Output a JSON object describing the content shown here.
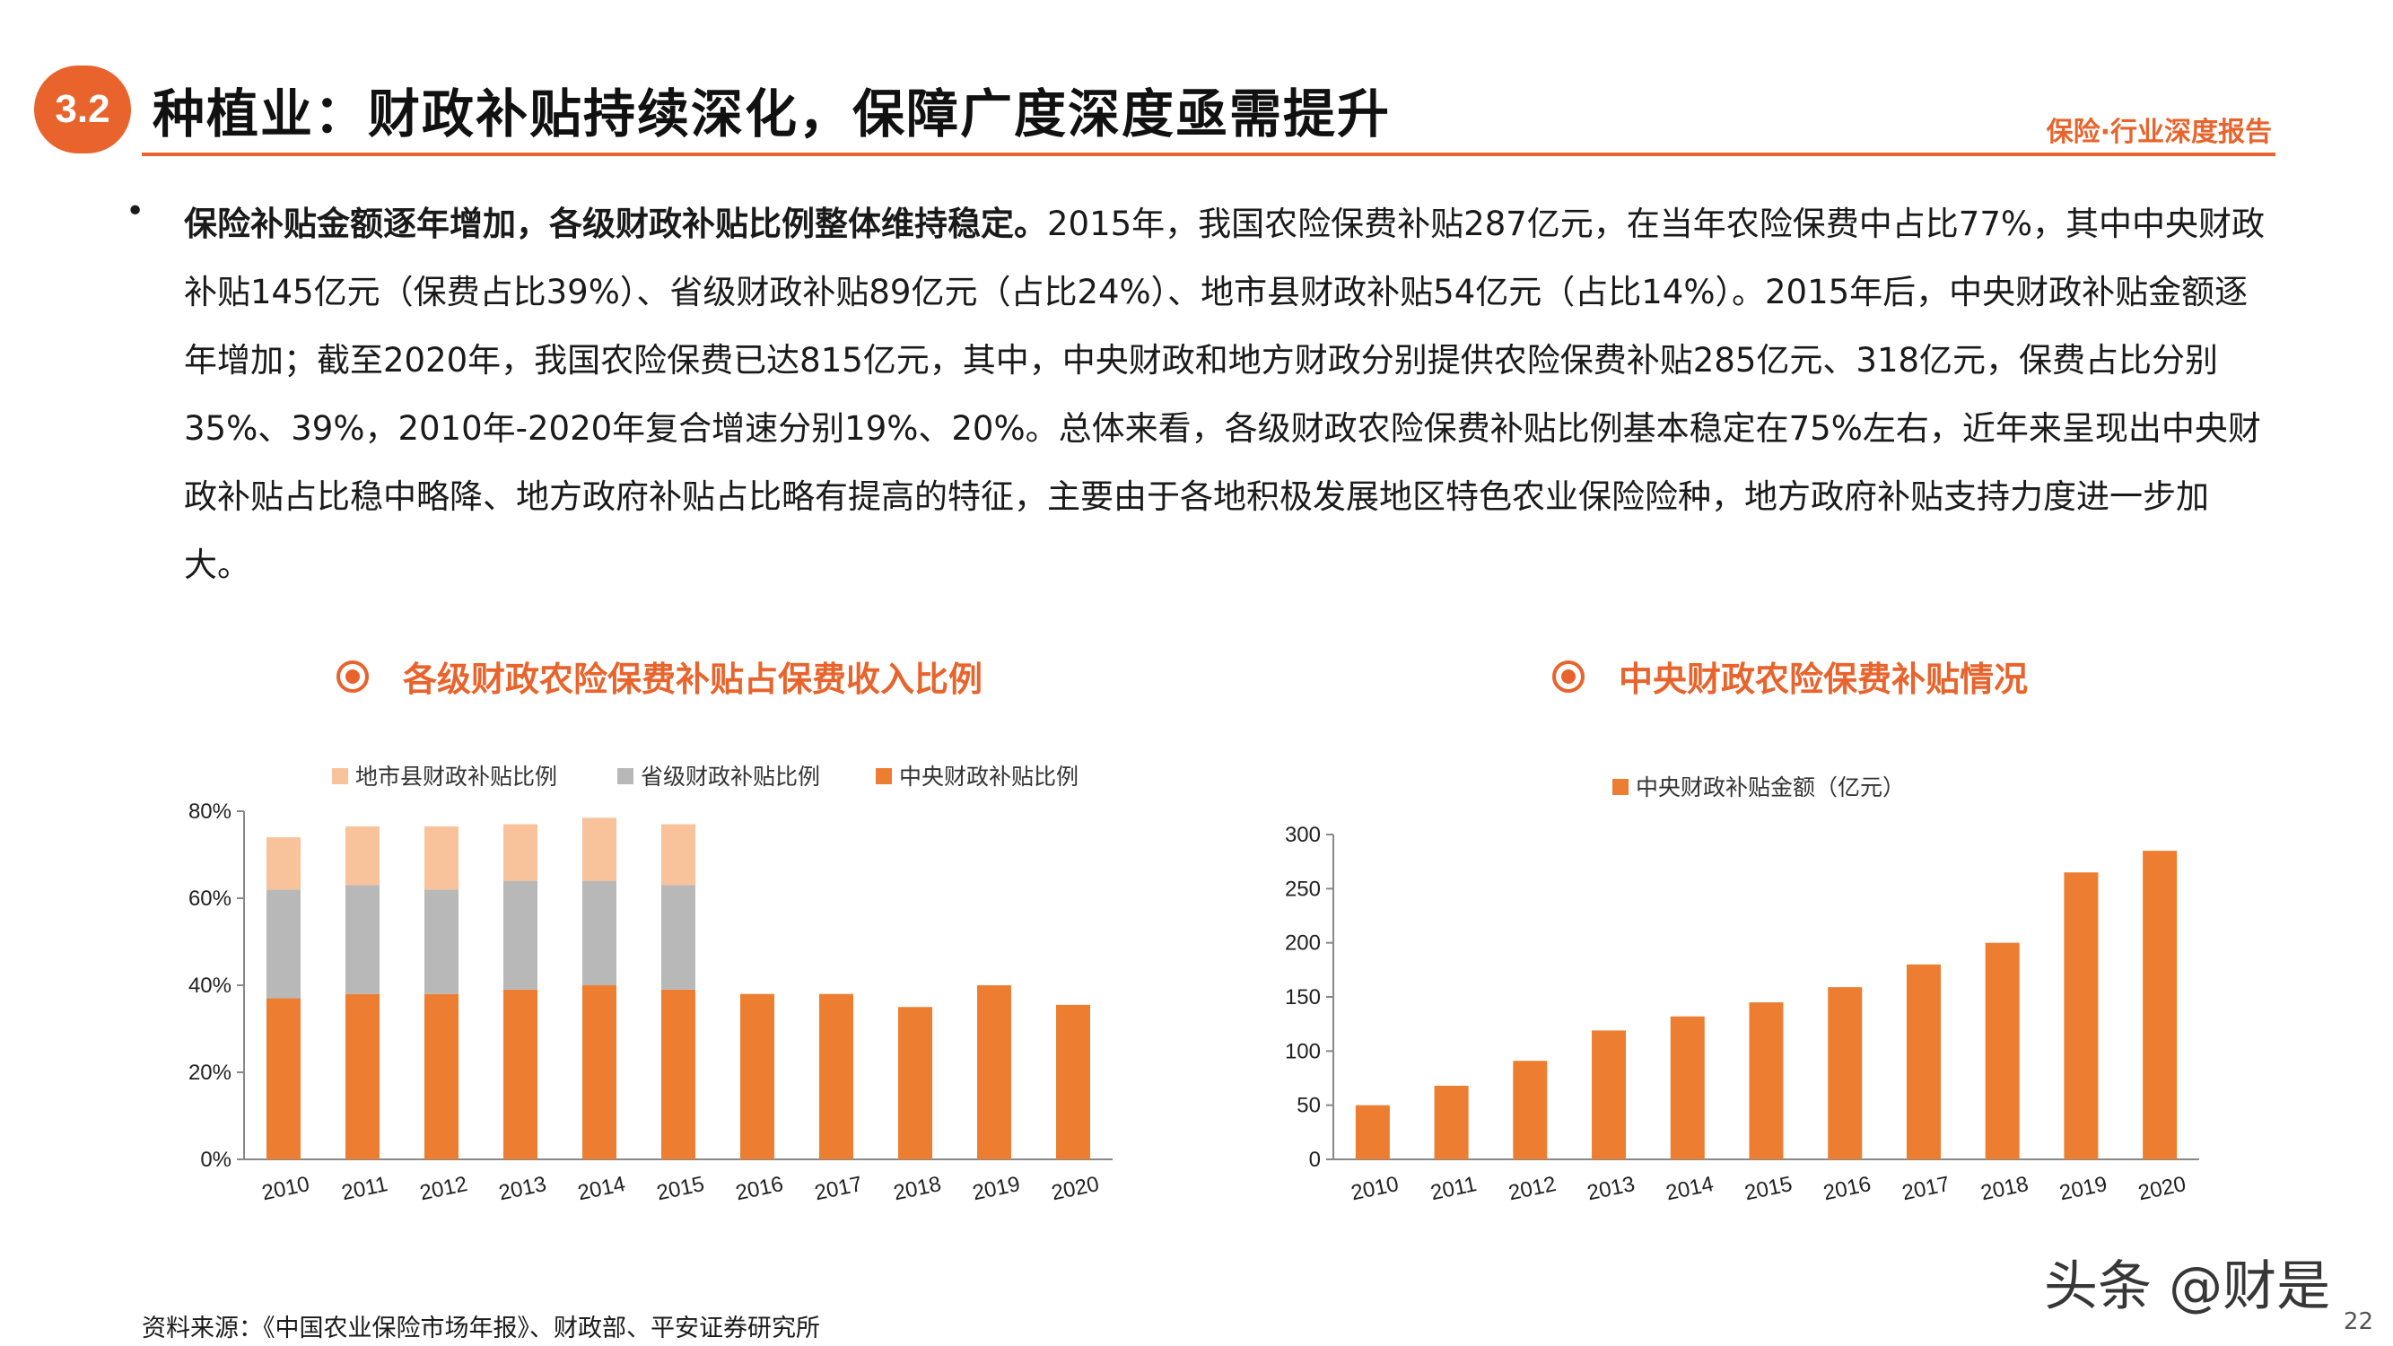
{
  "header": {
    "section_number": "3.2",
    "title": "种植业：财政补贴持续深化，保障广度深度亟需提升",
    "report_tag": "保险·行业深度报告"
  },
  "body": {
    "bullet": "•",
    "lead": "保险补贴金额逐年增加，各级财政补贴比例整体维持稳定。",
    "text": "2015年，我国农险保费补贴287亿元，在当年农险保费中占比77%，其中中央财政补贴145亿元（保费占比39%）、省级财政补贴89亿元（占比24%）、地市县财政补贴54亿元（占比14%）。2015年后，中央财政补贴金额逐年增加；截至2020年，我国农险保费已达815亿元，其中，中央财政和地方财政分别提供农险保费补贴285亿元、318亿元，保费占比分别35%、39%，2010年-2020年复合增速分别19%、20%。总体来看，各级财政农险保费补贴比例基本稳定在75%左右，近年来呈现出中央财政补贴占比稳中略降、地方政府补贴占比略有提高的特征，主要由于各地积极发展地区特色农业保险险种，地方政府补贴支持力度进一步加大。"
  },
  "chart_titles": {
    "left": "各级财政农险保费补贴占保费收入比例",
    "right": "中央财政农险保费补贴情况"
  },
  "colors": {
    "accent": "#e8642c",
    "bar_orange": "#ed7d31",
    "bar_gray": "#b8b8b8",
    "bar_peach": "#f8c39b"
  },
  "chart_data": [
    {
      "type": "bar",
      "stacked": true,
      "categories": [
        "2010",
        "2011",
        "2012",
        "2013",
        "2014",
        "2015",
        "2016",
        "2017",
        "2018",
        "2019",
        "2020"
      ],
      "series": [
        {
          "name": "中央财政补贴比例",
          "color": "#ed7d31",
          "values": [
            37,
            38,
            38,
            39,
            40,
            39,
            38,
            38,
            35,
            40,
            35.5
          ]
        },
        {
          "name": "省级财政补贴比例",
          "color": "#b8b8b8",
          "values": [
            25,
            25,
            24,
            25,
            24,
            24,
            null,
            null,
            null,
            null,
            null
          ]
        },
        {
          "name": "地市县财政补贴比例",
          "color": "#f8c39b",
          "values": [
            12,
            13.5,
            14.5,
            13,
            14.5,
            14,
            null,
            null,
            null,
            null,
            null
          ]
        }
      ],
      "legend_order": [
        "地市县财政补贴比例",
        "省级财政补贴比例",
        "中央财政补贴比例"
      ],
      "legend_position": "top",
      "ylim": [
        0,
        80
      ],
      "yticks": [
        "0%",
        "20%",
        "40%",
        "60%",
        "80%"
      ],
      "grid": false
    },
    {
      "type": "bar",
      "categories": [
        "2010",
        "2011",
        "2012",
        "2013",
        "2014",
        "2015",
        "2016",
        "2017",
        "2018",
        "2019",
        "2020"
      ],
      "series": [
        {
          "name": "中央财政补贴金额（亿元）",
          "color": "#ed7d31",
          "values": [
            50,
            68,
            91,
            119,
            132,
            145,
            159,
            180,
            200,
            265,
            285
          ]
        }
      ],
      "legend_position": "top",
      "ylim": [
        0,
        300
      ],
      "yticks": [
        "0",
        "50",
        "100",
        "150",
        "200",
        "250",
        "300"
      ],
      "grid": false
    }
  ],
  "footer": {
    "source": "资料来源：《中国农业保险市场年报》、财政部、平安证券研究所",
    "watermark": "头条 @财是",
    "page_number": "22"
  }
}
